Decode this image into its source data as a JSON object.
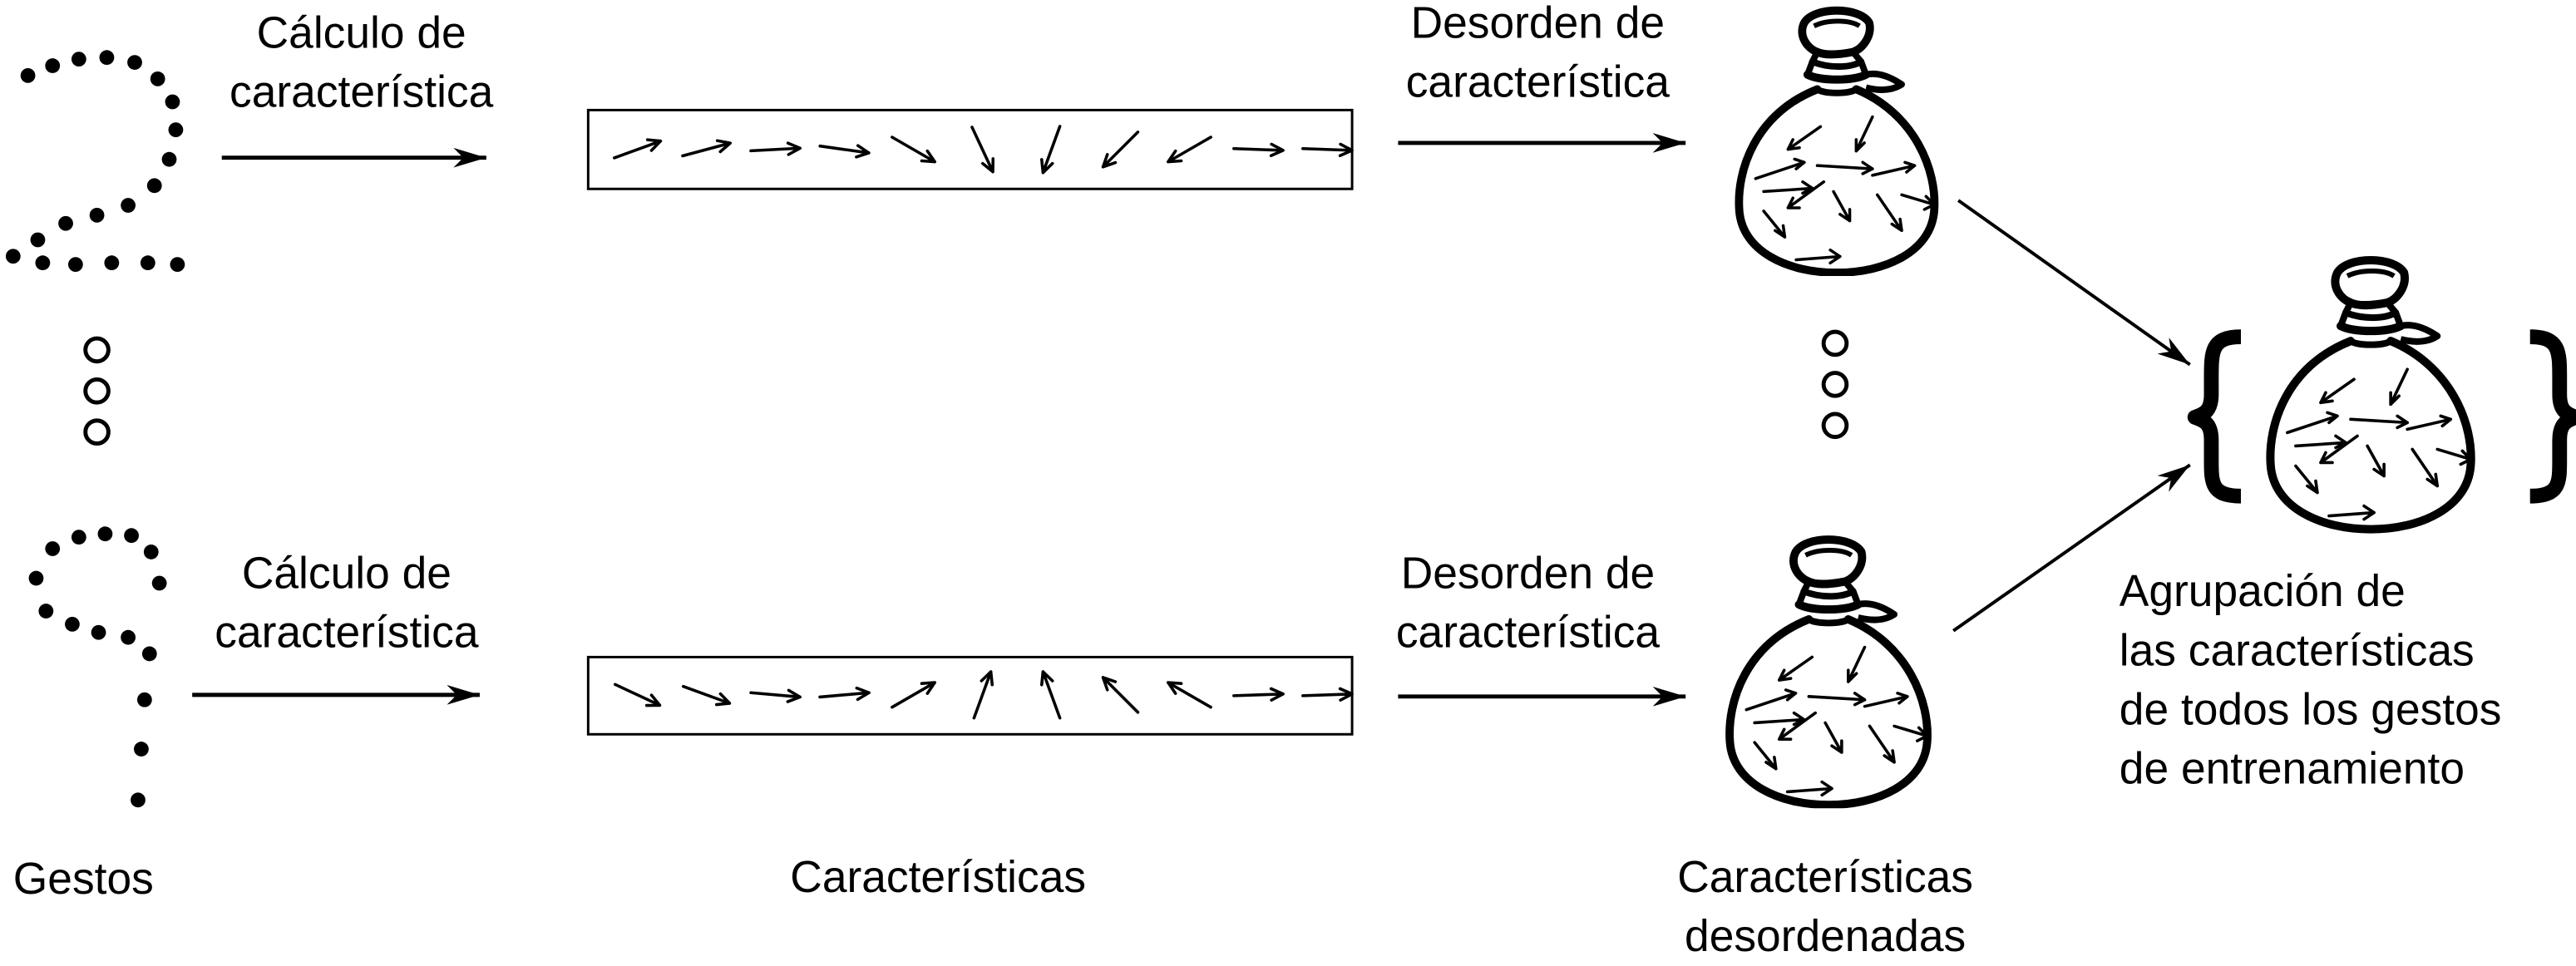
{
  "labels": {
    "calc": "Cálculo de característica",
    "calc_line1": "Cálculo de",
    "calc_line2": "característica",
    "shuffle_line1": "Desorden de",
    "shuffle_line2": "característica",
    "gestures": "Gestos",
    "features": "Características",
    "shuffled_line1": "Características",
    "shuffled_line2": "desordenadas",
    "pool_line1": "Agrupación de",
    "pool_line2": "las características",
    "pool_line3": "de todos los gestos",
    "pool_line4": "de entrenamiento"
  },
  "feature_rows": {
    "top_angles_deg": [
      -20,
      -15,
      -3,
      8,
      30,
      65,
      110,
      135,
      150,
      2,
      2
    ],
    "bottom_angles_deg": [
      25,
      20,
      5,
      -5,
      -30,
      -70,
      -110,
      -135,
      -150,
      -2,
      -2
    ]
  },
  "icons": [
    "gesture-dot-path",
    "ellipsis-dots",
    "arrow-icon",
    "bag-icon",
    "brace-icon"
  ]
}
